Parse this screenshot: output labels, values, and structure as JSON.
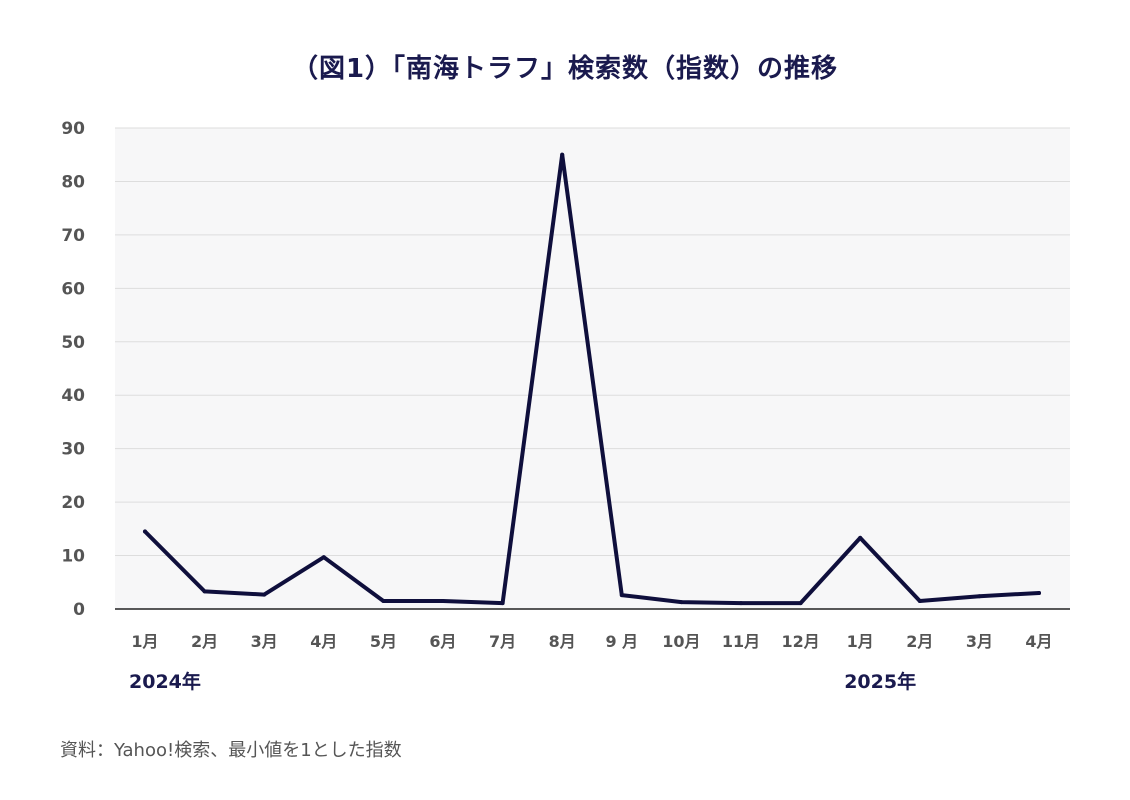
{
  "title": "（図1）「南海トラフ」検索数（指数）の推移",
  "source": "資料：Yahoo!検索、最小値を1とした指数",
  "chart_data": {
    "type": "line",
    "title": "（図1）「南海トラフ」検索数（指数）の推移",
    "categories": [
      "1月",
      "2月",
      "3月",
      "4月",
      "5月",
      "6月",
      "7月",
      "8月",
      "9 月",
      "10月",
      "11月",
      "12月",
      "1月",
      "2月",
      "3月",
      "4月"
    ],
    "year_labels": [
      {
        "label": "2024年",
        "category_index": 0
      },
      {
        "label": "2025年",
        "category_index": 12
      }
    ],
    "series": [
      {
        "values": [
          14.5,
          3.3,
          2.7,
          9.7,
          1.5,
          1.5,
          1.1,
          85,
          2.6,
          1.3,
          1.1,
          1.1,
          13.3,
          1.5,
          2.4,
          3.0
        ],
        "color": "#0f0f3c"
      }
    ],
    "ylim": [
      0,
      90
    ],
    "yticks": [
      0,
      10,
      20,
      30,
      40,
      50,
      60,
      70,
      80,
      90
    ],
    "xlabel": "",
    "ylabel": "",
    "grid": true,
    "background": "#f7f7f8",
    "grid_color": "#dddddd"
  }
}
